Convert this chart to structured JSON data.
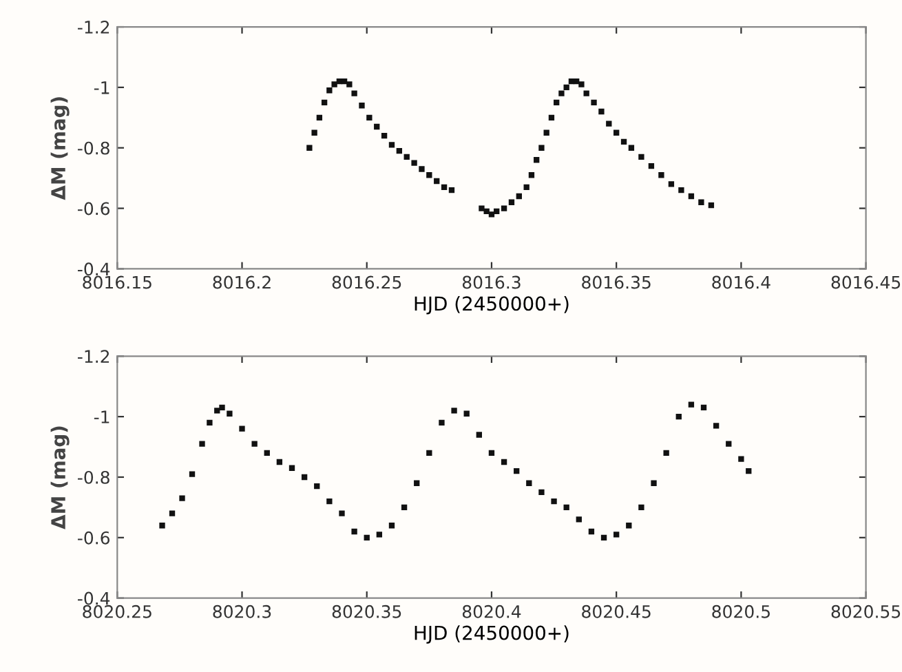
{
  "chart_data": [
    {
      "type": "scatter",
      "xlabel": "HJD (2450000+)",
      "ylabel": "ΔM (mag)",
      "marker": "square",
      "grid": false,
      "xlim": [
        8016.15,
        8016.45
      ],
      "xticks": [
        8016.15,
        8016.2,
        8016.25,
        8016.3,
        8016.35,
        8016.4,
        8016.45
      ],
      "ylim": [
        -0.4,
        -1.2
      ],
      "yticks": [
        -1.2,
        -1,
        -0.8,
        -0.6,
        -0.4
      ],
      "series": [
        {
          "color": "#111111",
          "x": [
            8016.227,
            8016.229,
            8016.231,
            8016.233,
            8016.235,
            8016.237,
            8016.239,
            8016.241,
            8016.243,
            8016.245,
            8016.248,
            8016.251,
            8016.254,
            8016.257,
            8016.26,
            8016.263,
            8016.266,
            8016.269,
            8016.272,
            8016.275,
            8016.278,
            8016.281,
            8016.284,
            8016.296,
            8016.298,
            8016.3,
            8016.302,
            8016.305,
            8016.308,
            8016.311,
            8016.314,
            8016.316,
            8016.318,
            8016.32,
            8016.322,
            8016.324,
            8016.326,
            8016.328,
            8016.33,
            8016.332,
            8016.334,
            8016.336,
            8016.338,
            8016.341,
            8016.344,
            8016.347,
            8016.35,
            8016.353,
            8016.356,
            8016.36,
            8016.364,
            8016.368,
            8016.372,
            8016.376,
            8016.38,
            8016.384,
            8016.388
          ],
          "values": [
            -0.8,
            -0.85,
            -0.9,
            -0.95,
            -0.99,
            -1.01,
            -1.02,
            -1.02,
            -1.01,
            -0.98,
            -0.94,
            -0.9,
            -0.87,
            -0.84,
            -0.81,
            -0.79,
            -0.77,
            -0.75,
            -0.73,
            -0.71,
            -0.69,
            -0.67,
            -0.66,
            -0.6,
            -0.59,
            -0.58,
            -0.59,
            -0.6,
            -0.62,
            -0.64,
            -0.67,
            -0.71,
            -0.76,
            -0.8,
            -0.85,
            -0.9,
            -0.95,
            -0.98,
            -1.0,
            -1.02,
            -1.02,
            -1.01,
            -0.98,
            -0.95,
            -0.92,
            -0.88,
            -0.85,
            -0.82,
            -0.8,
            -0.77,
            -0.74,
            -0.71,
            -0.68,
            -0.66,
            -0.64,
            -0.62,
            -0.61
          ]
        }
      ]
    },
    {
      "type": "scatter",
      "xlabel": "HJD (2450000+)",
      "ylabel": "ΔM (mag)",
      "marker": "square",
      "grid": false,
      "xlim": [
        8020.25,
        8020.55
      ],
      "xticks": [
        8020.25,
        8020.3,
        8020.35,
        8020.4,
        8020.45,
        8020.5,
        8020.55
      ],
      "ylim": [
        -0.4,
        -1.2
      ],
      "yticks": [
        -1.2,
        -1,
        -0.8,
        -0.6,
        -0.4
      ],
      "series": [
        {
          "color": "#111111",
          "x": [
            8020.268,
            8020.272,
            8020.276,
            8020.28,
            8020.284,
            8020.287,
            8020.29,
            8020.292,
            8020.295,
            8020.3,
            8020.305,
            8020.31,
            8020.315,
            8020.32,
            8020.325,
            8020.33,
            8020.335,
            8020.34,
            8020.345,
            8020.35,
            8020.355,
            8020.36,
            8020.365,
            8020.37,
            8020.375,
            8020.38,
            8020.385,
            8020.39,
            8020.395,
            8020.4,
            8020.405,
            8020.41,
            8020.415,
            8020.42,
            8020.425,
            8020.43,
            8020.435,
            8020.44,
            8020.445,
            8020.45,
            8020.455,
            8020.46,
            8020.465,
            8020.47,
            8020.475,
            8020.48,
            8020.485,
            8020.49,
            8020.495,
            8020.5,
            8020.503
          ],
          "values": [
            -0.64,
            -0.68,
            -0.73,
            -0.81,
            -0.91,
            -0.98,
            -1.02,
            -1.03,
            -1.01,
            -0.96,
            -0.91,
            -0.88,
            -0.85,
            -0.83,
            -0.8,
            -0.77,
            -0.72,
            -0.68,
            -0.62,
            -0.6,
            -0.61,
            -0.64,
            -0.7,
            -0.78,
            -0.88,
            -0.98,
            -1.02,
            -1.01,
            -0.94,
            -0.88,
            -0.85,
            -0.82,
            -0.78,
            -0.75,
            -0.72,
            -0.7,
            -0.66,
            -0.62,
            -0.6,
            -0.61,
            -0.64,
            -0.7,
            -0.78,
            -0.88,
            -1.0,
            -1.04,
            -1.03,
            -0.97,
            -0.91,
            -0.86,
            -0.82
          ]
        }
      ]
    }
  ]
}
